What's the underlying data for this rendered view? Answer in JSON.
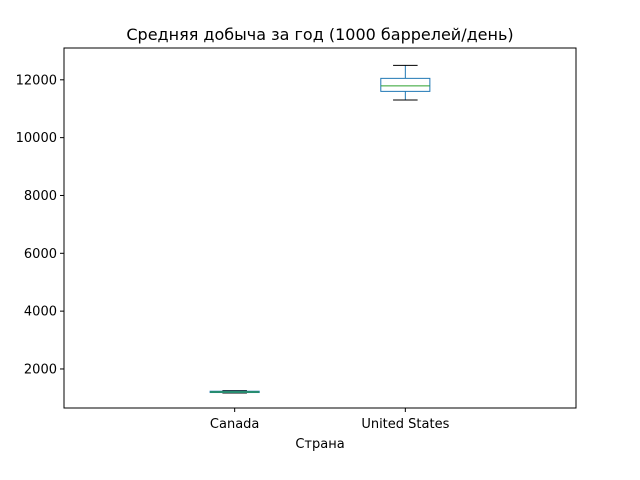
{
  "chart_data": {
    "type": "box",
    "title": "Средняя добыча за год (1000 баррелей/день)",
    "xlabel": "Страна",
    "ylabel": "",
    "categories": [
      "Canada",
      "United States"
    ],
    "boxes": [
      {
        "name": "Canada",
        "whisker_low": 1170,
        "q1": 1185,
        "median": 1205,
        "q3": 1230,
        "whisker_high": 1250
      },
      {
        "name": "United States",
        "whisker_low": 11300,
        "q1": 11600,
        "median": 11790,
        "q3": 12050,
        "whisker_high": 12500
      }
    ],
    "ylim": [
      650,
      13100
    ],
    "yticks": [
      2000,
      4000,
      6000,
      8000,
      10000,
      12000
    ],
    "grid": false,
    "colors": {
      "box": "#1f77b4",
      "median": "#2ca02c",
      "whisker": "#000000",
      "axes": "#000000"
    }
  }
}
